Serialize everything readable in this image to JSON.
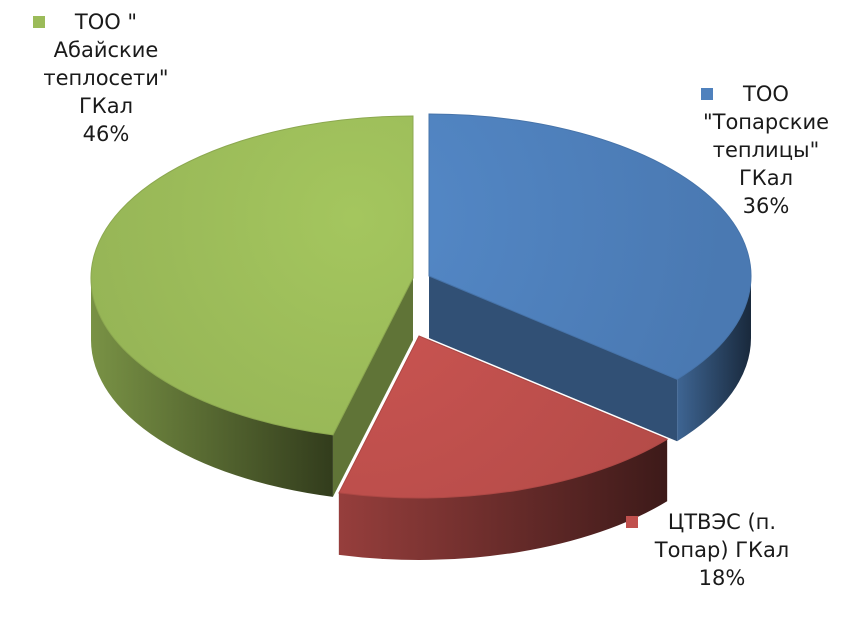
{
  "chart_data": {
    "type": "pie",
    "style": "3d-exploded",
    "title": "",
    "legend": "none",
    "data_labels": "category-name-and-percent",
    "categories": [
      "ТОО \"Топарские теплицы\" ГКал",
      "ЦТВЭС (п. Топар) ГКал",
      "ТОО \" Абайские теплосети\" ГКал"
    ],
    "values": [
      36,
      18,
      46
    ],
    "percent_labels": [
      "36%",
      "18%",
      "46%"
    ],
    "colors": [
      "#4f81bd",
      "#c0504d",
      "#9bbb59"
    ],
    "slices": [
      {
        "name": "ТОО \"Топарские теплицы\" ГКал",
        "name_lines": [
          "ТОО",
          "\"Топарские",
          "теплицы\"",
          "ГКал"
        ],
        "value": 36,
        "percent_label": "36%",
        "color": "#4f81bd"
      },
      {
        "name": "ЦТВЭС (п. Топар) ГКал",
        "name_lines": [
          "ЦТВЭС (п.",
          "Топар) ГКал"
        ],
        "value": 18,
        "percent_label": "18%",
        "color": "#c0504d"
      },
      {
        "name": "ТОО \" Абайские теплосети\" ГКал",
        "name_lines": [
          "ТОО \"",
          "Абайские",
          "теплосети\"",
          "ГКал"
        ],
        "value": 46,
        "percent_label": "46%",
        "color": "#9bbb59"
      }
    ]
  }
}
